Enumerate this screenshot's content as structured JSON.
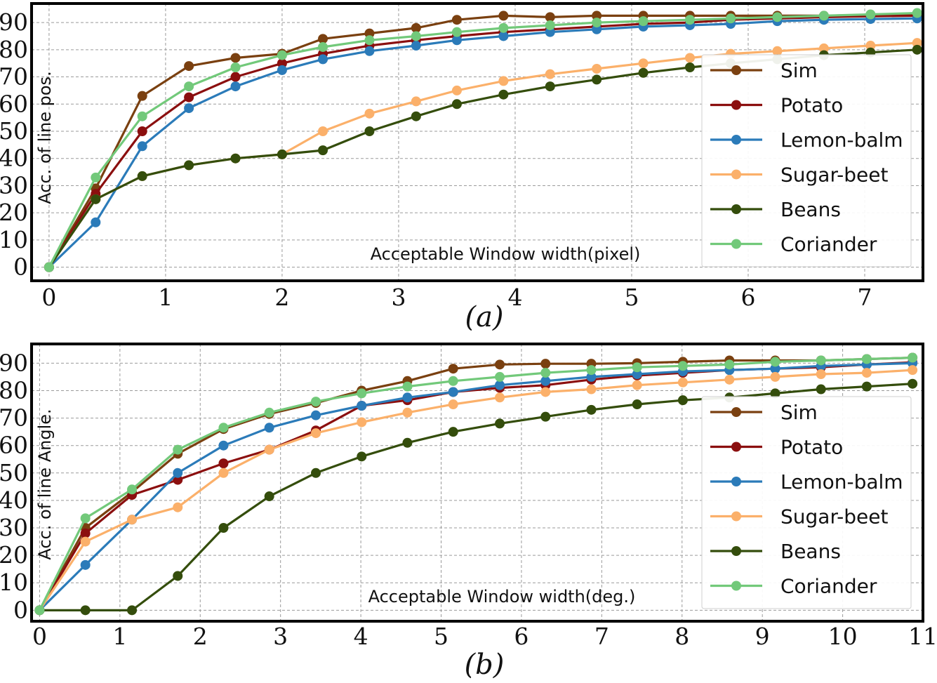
{
  "colors": {
    "Sim": "#7a4010",
    "Potato": "#8b0f0f",
    "Lemon-balm": "#2b7bb9",
    "Sugar-beet": "#fbb06a",
    "Beans": "#344d0c",
    "Coriander": "#72c97a"
  },
  "chart_data": [
    {
      "type": "line",
      "panel_label": "(a)",
      "xlabel": "Acceptable Window width(pixel)",
      "ylabel": "Acc. of line pos.",
      "xlim": [
        -0.15,
        7.5
      ],
      "ylim": [
        -5,
        97
      ],
      "xticks": [
        0,
        1,
        2,
        3,
        4,
        5,
        6,
        7
      ],
      "yticks": [
        0,
        10,
        20,
        30,
        40,
        50,
        60,
        70,
        80,
        90
      ],
      "grid": true,
      "legend_position": "lower-right",
      "x": [
        0,
        0.4,
        0.8,
        1.2,
        1.6,
        2.0,
        2.35,
        2.75,
        3.15,
        3.5,
        3.9,
        4.3,
        4.7,
        5.1,
        5.5,
        5.85,
        6.25,
        6.65,
        7.05,
        7.45
      ],
      "series": [
        {
          "name": "Sim",
          "values": [
            0,
            29,
            63,
            74,
            77,
            78.5,
            84,
            86,
            88,
            91,
            92.5,
            92,
            92.5,
            92.5,
            92.5,
            92.5,
            92.5,
            92.5,
            92.8,
            93
          ]
        },
        {
          "name": "Potato",
          "values": [
            0,
            27,
            50,
            62.5,
            70,
            75,
            78.5,
            81.5,
            83.5,
            85,
            86.5,
            87.5,
            88.5,
            89.5,
            90,
            91,
            91.5,
            92,
            92.3,
            92.5
          ]
        },
        {
          "name": "Lemon-balm",
          "values": [
            0,
            16.5,
            44.5,
            58.5,
            66.5,
            72.5,
            76.5,
            79.5,
            81.5,
            83.5,
            85,
            86.5,
            87.5,
            88.5,
            89,
            89.5,
            90.5,
            91,
            91.3,
            91.5
          ]
        },
        {
          "name": "Sugar-beet",
          "values": [
            0,
            25,
            33.5,
            37.5,
            40,
            41.5,
            50,
            56.5,
            61,
            65,
            68.5,
            71,
            73,
            75,
            77,
            78.5,
            79.5,
            80.5,
            81.5,
            82.5
          ]
        },
        {
          "name": "Beans",
          "values": [
            0,
            25,
            33.5,
            37.5,
            40,
            41.5,
            43,
            50,
            55.5,
            60,
            63.5,
            66.5,
            69,
            71.5,
            73.5,
            75,
            76.5,
            78,
            79,
            80
          ]
        },
        {
          "name": "Coriander",
          "values": [
            0,
            33,
            55.5,
            66.5,
            73.5,
            78,
            81,
            83.5,
            85,
            86.5,
            88,
            89,
            90,
            90.5,
            91,
            91.5,
            92,
            92.5,
            93,
            93.5
          ]
        }
      ]
    },
    {
      "type": "line",
      "panel_label": "(b)",
      "xlabel": "Acceptable Window width(deg.)",
      "ylabel": "Acc. of line Angle.",
      "xlim": [
        -0.1,
        11
      ],
      "ylim": [
        -4,
        97
      ],
      "xticks": [
        0,
        1,
        2,
        3,
        4,
        5,
        6,
        7,
        8,
        9,
        10,
        11
      ],
      "yticks": [
        0,
        10,
        20,
        30,
        40,
        50,
        60,
        70,
        80,
        90
      ],
      "grid": true,
      "legend_position": "lower-right",
      "x": [
        0,
        0.57,
        1.15,
        1.72,
        2.29,
        2.86,
        3.44,
        4.01,
        4.58,
        5.15,
        5.73,
        6.3,
        6.87,
        7.44,
        8.01,
        8.59,
        9.16,
        9.73,
        10.3,
        10.87
      ],
      "series": [
        {
          "name": "Sim",
          "values": [
            0,
            30,
            43,
            57,
            66,
            71.5,
            75.5,
            80,
            83.5,
            88,
            89.5,
            89.8,
            89.8,
            90,
            90.5,
            91,
            91,
            91,
            91.5,
            92
          ]
        },
        {
          "name": "Potato",
          "values": [
            0,
            28,
            42,
            47.5,
            53.5,
            58.5,
            65.5,
            74.5,
            76.5,
            79.5,
            81,
            82,
            84,
            85.5,
            86.5,
            87.5,
            88,
            88.5,
            89.5,
            90.3
          ]
        },
        {
          "name": "Lemon-balm",
          "values": [
            0,
            16.5,
            33,
            50,
            60,
            66.5,
            71,
            74.5,
            77.5,
            79.5,
            82,
            83.5,
            85,
            86,
            87,
            87.5,
            88,
            89,
            89.5,
            90
          ]
        },
        {
          "name": "Sugar-beet",
          "values": [
            0,
            25,
            33,
            37.5,
            50,
            58.5,
            64.5,
            68.5,
            72,
            75,
            77.5,
            79.5,
            80.5,
            82,
            83,
            84,
            85,
            86,
            86.5,
            87.5
          ]
        },
        {
          "name": "Beans",
          "values": [
            0,
            0,
            0,
            12.5,
            30,
            41.5,
            50,
            56,
            61,
            65,
            68,
            70.5,
            73,
            75,
            76.5,
            77.5,
            79,
            80.5,
            81.5,
            82.5
          ]
        },
        {
          "name": "Coriander",
          "values": [
            0,
            33.5,
            44,
            58.5,
            66.5,
            72,
            76,
            79,
            81.5,
            83.5,
            85,
            86.5,
            87.5,
            88.5,
            89,
            89.5,
            90.5,
            91,
            91.5,
            92
          ]
        }
      ]
    }
  ]
}
